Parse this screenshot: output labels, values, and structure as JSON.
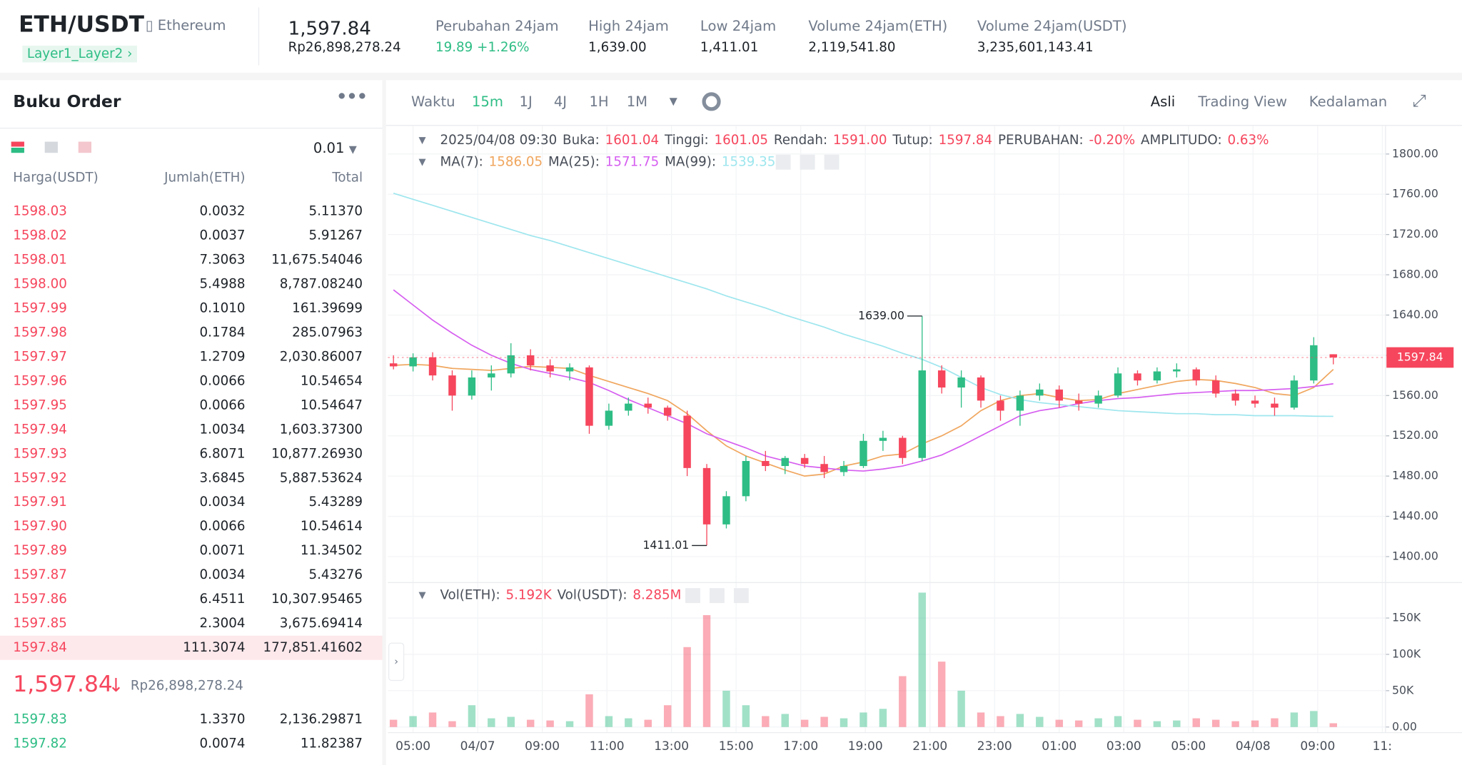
{
  "header": {
    "symbol": "ETH/USDT",
    "name": "Ethereum",
    "tag": "Layer1_Layer2",
    "price": "1,597.84",
    "price_idr": "Rp26,898,278.24",
    "stats": [
      {
        "label": "Perubahan 24jam",
        "value": "19.89 +1.26%"
      },
      {
        "label": "High 24jam",
        "value": "1,639.00"
      },
      {
        "label": "Low 24jam",
        "value": "1,411.01"
      },
      {
        "label": "Volume 24jam(ETH)",
        "value": "2,119,541.80"
      },
      {
        "label": "Volume 24jam(USDT)",
        "value": "3,235,601,143.41"
      }
    ]
  },
  "order_book": {
    "title": "Buku Order",
    "tick_size": "0.01",
    "columns": [
      "Harga(USDT)",
      "Jumlah(ETH)",
      "Total"
    ],
    "asks": [
      [
        "1598.03",
        "0.0032",
        "5.11370"
      ],
      [
        "1598.02",
        "0.0037",
        "5.91267"
      ],
      [
        "1598.01",
        "7.3063",
        "11,675.54046"
      ],
      [
        "1598.00",
        "5.4988",
        "8,787.08240"
      ],
      [
        "1597.99",
        "0.1010",
        "161.39699"
      ],
      [
        "1597.98",
        "0.1784",
        "285.07963"
      ],
      [
        "1597.97",
        "1.2709",
        "2,030.86007"
      ],
      [
        "1597.96",
        "0.0066",
        "10.54654"
      ],
      [
        "1597.95",
        "0.0066",
        "10.54647"
      ],
      [
        "1597.94",
        "1.0034",
        "1,603.37300"
      ],
      [
        "1597.93",
        "6.8071",
        "10,877.26930"
      ],
      [
        "1597.92",
        "3.6845",
        "5,887.53624"
      ],
      [
        "1597.91",
        "0.0034",
        "5.43289"
      ],
      [
        "1597.90",
        "0.0066",
        "10.54614"
      ],
      [
        "1597.89",
        "0.0071",
        "11.34502"
      ],
      [
        "1597.87",
        "0.0034",
        "5.43276"
      ],
      [
        "1597.86",
        "6.4511",
        "10,307.95465"
      ],
      [
        "1597.85",
        "2.3004",
        "3,675.69414"
      ],
      [
        "1597.84",
        "111.3074",
        "177,851.41602"
      ]
    ],
    "last_price": "1,597.84",
    "last_price_idr": "Rp26,898,278.24",
    "bids": [
      [
        "1597.83",
        "1.3370",
        "2,136.29871"
      ],
      [
        "1597.82",
        "0.0074",
        "11.82387"
      ]
    ]
  },
  "toolbar": {
    "time_label": "Waktu",
    "intervals": [
      "15m",
      "1J",
      "4J",
      "1H",
      "1M"
    ],
    "views": [
      "Asli",
      "Trading View",
      "Kedalaman"
    ]
  },
  "chart_data": {
    "type": "candlestick",
    "up_color": "#2ebd85",
    "down_color": "#f6465d",
    "date_time": "2025/04/08 09:30",
    "ohlc_legend": [
      {
        "label": "Buka:",
        "value": "1601.04"
      },
      {
        "label": "Tinggi:",
        "value": "1601.05"
      },
      {
        "label": "Rendah:",
        "value": "1591.00"
      },
      {
        "label": "Tutup:",
        "value": "1597.84"
      },
      {
        "label": "PERUBAHAN:",
        "value": "-0.20%"
      },
      {
        "label": "AMPLITUDO:",
        "value": "0.63%"
      }
    ],
    "open": [
      1592,
      1589,
      1598,
      1580,
      1560,
      1578,
      1582,
      1600,
      1590,
      1584,
      1588,
      1530,
      1545,
      1552,
      1548,
      1540,
      1488,
      1432,
      1460,
      1495,
      1490,
      1498,
      1492,
      1484,
      1490,
      1515,
      1518,
      1498,
      1585,
      1568,
      1578,
      1555,
      1545,
      1560,
      1566,
      1555,
      1552,
      1560,
      1582,
      1575,
      1584,
      1586,
      1575,
      1562,
      1555,
      1552,
      1548,
      1575,
      1601.04
    ],
    "high": [
      1600,
      1602,
      1603,
      1585,
      1585,
      1590,
      1612,
      1606,
      1596,
      1592,
      1590,
      1552,
      1558,
      1558,
      1550,
      1545,
      1492,
      1465,
      1500,
      1505,
      1500,
      1502,
      1500,
      1495,
      1522,
      1525,
      1520,
      1639,
      1590,
      1585,
      1580,
      1560,
      1565,
      1572,
      1570,
      1562,
      1565,
      1588,
      1585,
      1588,
      1592,
      1588,
      1580,
      1566,
      1560,
      1558,
      1580,
      1618,
      1601.05
    ],
    "low": [
      1586,
      1584,
      1575,
      1545,
      1556,
      1565,
      1578,
      1585,
      1578,
      1575,
      1522,
      1526,
      1540,
      1542,
      1535,
      1480,
      1411.01,
      1428,
      1455,
      1485,
      1482,
      1488,
      1478,
      1480,
      1488,
      1505,
      1492,
      1495,
      1562,
      1548,
      1548,
      1535,
      1530,
      1555,
      1548,
      1545,
      1548,
      1558,
      1570,
      1572,
      1578,
      1570,
      1558,
      1550,
      1548,
      1540,
      1546,
      1572,
      1591.0
    ],
    "close": [
      1589,
      1598,
      1580,
      1560,
      1578,
      1582,
      1600,
      1590,
      1584,
      1588,
      1530,
      1545,
      1552,
      1548,
      1540,
      1488,
      1432,
      1460,
      1495,
      1490,
      1498,
      1492,
      1484,
      1490,
      1515,
      1518,
      1498,
      1585,
      1568,
      1578,
      1555,
      1545,
      1560,
      1566,
      1555,
      1552,
      1560,
      1582,
      1575,
      1584,
      1586,
      1575,
      1562,
      1555,
      1552,
      1548,
      1575,
      1610,
      1597.84
    ],
    "series": [
      {
        "name": "MA(7):",
        "color": "#f0a65e",
        "values": [
          1590,
          1591,
          1590,
          1587,
          1586,
          1585,
          1587,
          1589,
          1588,
          1587,
          1580,
          1574,
          1568,
          1562,
          1555,
          1542,
          1525,
          1510,
          1500,
          1493,
          1486,
          1480,
          1482,
          1490,
          1494,
          1500,
          1502,
          1512,
          1520,
          1530,
          1545,
          1555,
          1560,
          1562,
          1558,
          1555,
          1556,
          1562,
          1566,
          1570,
          1574,
          1576,
          1575,
          1572,
          1568,
          1562,
          1560,
          1568,
          1586.05
        ]
      },
      {
        "name": "MA(25):",
        "color": "#d65ef0",
        "values": [
          1665,
          1650,
          1635,
          1622,
          1610,
          1600,
          1592,
          1586,
          1582,
          1578,
          1573,
          1565,
          1556,
          1548,
          1540,
          1532,
          1522,
          1515,
          1508,
          1500,
          1495,
          1490,
          1488,
          1486,
          1485,
          1487,
          1490,
          1495,
          1501,
          1510,
          1520,
          1530,
          1540,
          1545,
          1548,
          1552,
          1555,
          1557,
          1558,
          1560,
          1562,
          1563,
          1564,
          1565,
          1565,
          1566,
          1567,
          1569,
          1571.75
        ]
      },
      {
        "name": "MA(99):",
        "color": "#9ee6ee",
        "values": [
          1761,
          1755,
          1749,
          1743,
          1737,
          1731,
          1725,
          1719,
          1714,
          1708,
          1702,
          1696,
          1690,
          1684,
          1678,
          1672,
          1666,
          1659,
          1653,
          1647,
          1640,
          1634,
          1628,
          1621,
          1615,
          1609,
          1602,
          1596,
          1588,
          1578,
          1568,
          1561,
          1556,
          1553,
          1551,
          1549,
          1547,
          1545,
          1544,
          1543,
          1542,
          1542,
          1541,
          1541,
          1540,
          1540,
          1540,
          1539.5,
          1539.35
        ]
      }
    ],
    "ylim": [
      1377,
      1828
    ],
    "yticks": [
      {
        "value": 1400,
        "label": "1400.00"
      },
      {
        "value": 1440,
        "label": "1440.00"
      },
      {
        "value": 1480,
        "label": "1480.00"
      },
      {
        "value": 1520,
        "label": "1520.00"
      },
      {
        "value": 1560,
        "label": "1560.00"
      },
      {
        "value": 1600,
        "label": "1600.00"
      },
      {
        "value": 1640,
        "label": "1640.00"
      },
      {
        "value": 1680,
        "label": "1680.00"
      },
      {
        "value": 1720,
        "label": "1720.00"
      },
      {
        "value": 1760,
        "label": "1760.00"
      },
      {
        "value": 1800,
        "label": "1800.00"
      }
    ],
    "max_label": "1639.00",
    "min_label": "1411.01",
    "volume": [
      10000,
      15000,
      20000,
      8000,
      30000,
      12000,
      14000,
      10000,
      9000,
      8000,
      45000,
      15000,
      12000,
      10000,
      30000,
      110000,
      154000,
      50000,
      30000,
      15000,
      18000,
      10000,
      14000,
      12000,
      20000,
      25000,
      70000,
      185000,
      90000,
      50000,
      20000,
      15000,
      18000,
      14000,
      10000,
      9000,
      12000,
      15000,
      10000,
      8000,
      9000,
      12000,
      10000,
      8000,
      9000,
      12000,
      20000,
      22000,
      5192
    ],
    "vol_legend": [
      {
        "label": "Vol(ETH):",
        "value": "5.192K"
      },
      {
        "label": "Vol(USDT):",
        "value": "8.285M"
      }
    ],
    "vol_ylim": [
      -7700,
      195000
    ],
    "vol_yticks": [
      {
        "value": 0,
        "label": "0.00"
      },
      {
        "value": 50000,
        "label": "50K"
      },
      {
        "value": 100000,
        "label": "100K"
      },
      {
        "value": 150000,
        "label": "150K"
      }
    ],
    "xtick_labels": [
      "05:00",
      "04/07",
      "09:00",
      "11:00",
      "13:00",
      "15:00",
      "17:00",
      "19:00",
      "21:00",
      "23:00",
      "01:00",
      "03:00",
      "05:00",
      "04/08",
      "09:00",
      "11:"
    ],
    "grid": true
  }
}
